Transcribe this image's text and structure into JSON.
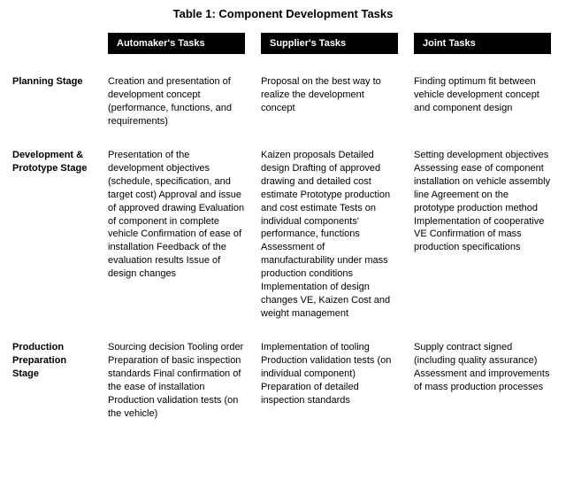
{
  "title": "Table 1: Component Development Tasks",
  "columns": {
    "automaker": "Automaker's Tasks",
    "supplier": "Supplier's Tasks",
    "joint": "Joint Tasks"
  },
  "rows": {
    "planning": {
      "label": "Planning Stage",
      "automaker": "Creation and presentation of development concept (performance, functions, and requirements)",
      "supplier": "Proposal on the best way to realize the development concept",
      "joint": "Finding optimum fit between vehicle development concept and component design"
    },
    "development": {
      "label": "Development & Prototype Stage",
      "automaker": "Presentation of the development objectives (schedule, specification, and target cost)\nApproval and issue of approved drawing\nEvaluation of component in complete vehicle\nConfirmation of ease of installation\nFeedback of the evaluation results\nIssue of design changes",
      "supplier": "Kaizen proposals\nDetailed design\nDrafting of approved drawing and detailed cost estimate\nPrototype production and cost estimate\nTests on individual components' performance, functions\nAssessment of manufacturability under mass production conditions\nImplementation of design changes\nVE, Kaizen\nCost and weight management",
      "joint": "Setting development objectives\nAssessing ease of component installation on vehicle assembly line\nAgreement on the prototype production method\nImplementation of cooperative VE\nConfirmation of mass production specifications"
    },
    "production": {
      "label": "Production Preparation Stage",
      "automaker": "Sourcing decision\nTooling order\nPreparation of basic inspection standards\nFinal confirmation of the ease of installation\nProduction validation tests (on the vehicle)",
      "supplier": "Implementation of tooling\nProduction validation tests (on individual component)\nPreparation of detailed inspection standards",
      "joint": "Supply contract signed (including quality assurance)\nAssessment and improvements of mass production processes"
    }
  }
}
